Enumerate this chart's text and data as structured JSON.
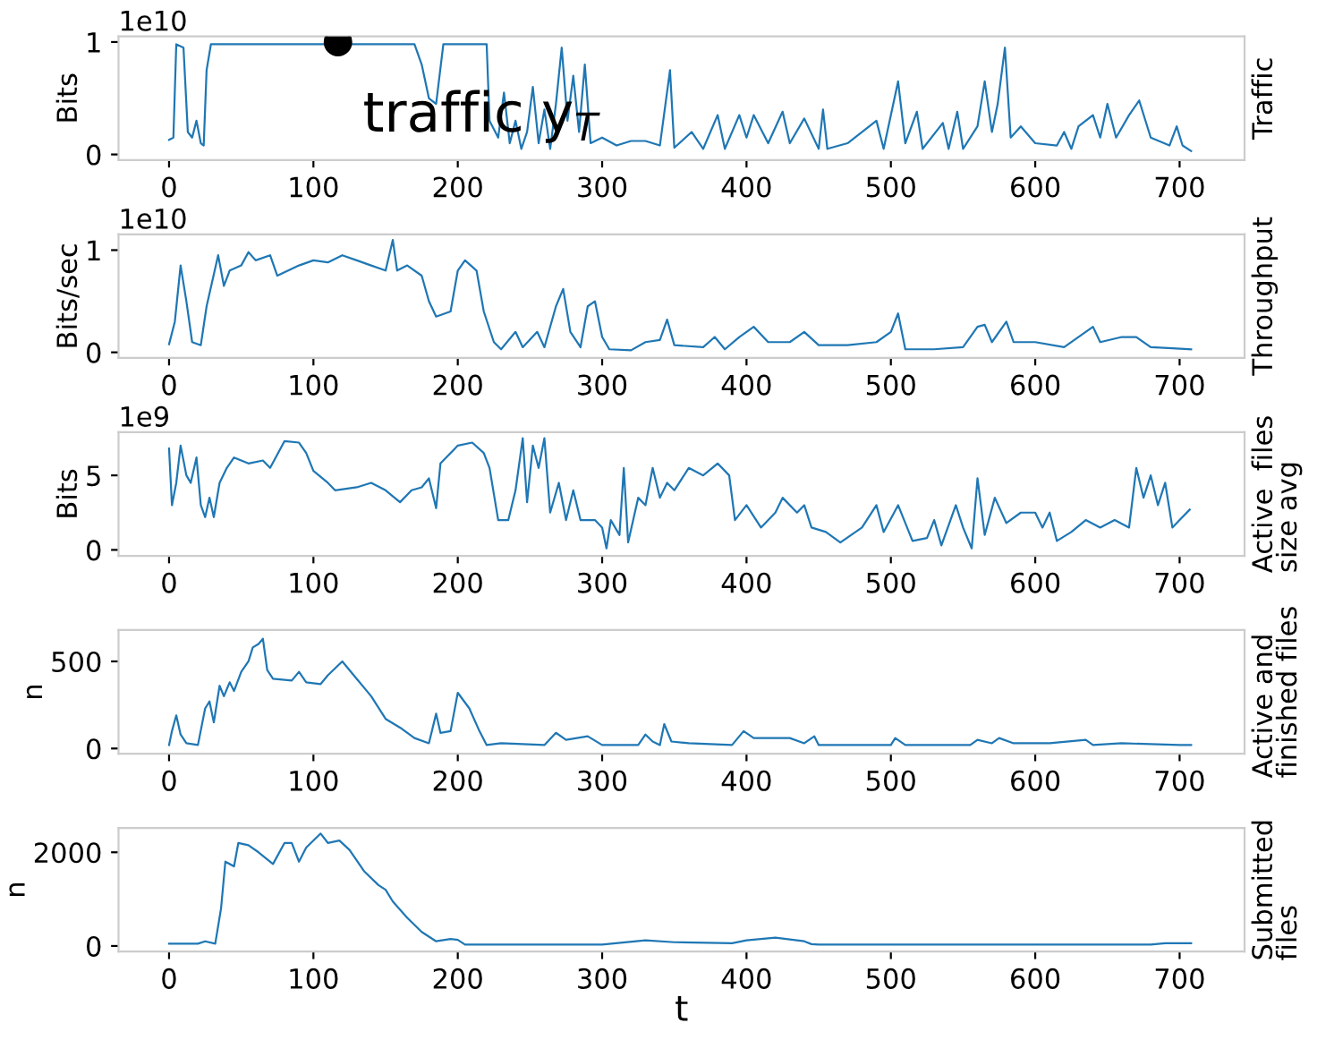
{
  "chart_data": [
    {
      "type": "line",
      "ylabel": "Bits",
      "y2label": "Traffic",
      "annotations": [
        "1e10",
        {
          "text": "traffic y$_{T}$",
          "x": 117,
          "y": 1.0
        }
      ],
      "xlim": [
        -35,
        745
      ],
      "xticks": [
        0,
        100,
        200,
        300,
        400,
        500,
        600,
        700
      ],
      "ylim": [
        -0.05,
        1.05
      ],
      "yticks": [
        0,
        1
      ],
      "series": [
        {
          "color": "#1f77b4",
          "x": [
            0,
            3,
            5,
            10,
            13,
            16,
            19,
            22,
            24,
            26,
            29,
            100,
            170,
            175,
            180,
            185,
            190,
            220,
            222,
            228,
            232,
            236,
            240,
            244,
            248,
            252,
            256,
            260,
            264,
            268,
            272,
            276,
            280,
            284,
            288,
            292,
            300,
            310,
            320,
            330,
            340,
            347,
            350,
            362,
            370,
            380,
            385,
            395,
            400,
            405,
            415,
            425,
            430,
            440,
            450,
            453,
            456,
            470,
            490,
            495,
            505,
            510,
            518,
            522,
            536,
            540,
            546,
            550,
            560,
            565,
            570,
            574,
            579,
            583,
            590,
            600,
            615,
            620,
            625,
            630,
            640,
            645,
            650,
            656,
            665,
            672,
            680,
            693,
            698,
            702,
            708
          ],
          "values": [
            0.13,
            0.15,
            0.98,
            0.95,
            0.2,
            0.15,
            0.3,
            0.1,
            0.08,
            0.75,
            0.98,
            0.98,
            0.98,
            0.8,
            0.5,
            0.45,
            0.98,
            0.98,
            0.3,
            0.15,
            0.55,
            0.1,
            0.3,
            0.05,
            0.2,
            0.6,
            0.1,
            0.4,
            0.05,
            0.45,
            0.95,
            0.3,
            0.7,
            0.2,
            0.8,
            0.1,
            0.15,
            0.08,
            0.12,
            0.12,
            0.08,
            0.75,
            0.06,
            0.2,
            0.05,
            0.35,
            0.05,
            0.35,
            0.15,
            0.35,
            0.1,
            0.38,
            0.1,
            0.32,
            0.05,
            0.4,
            0.05,
            0.1,
            0.3,
            0.05,
            0.65,
            0.1,
            0.38,
            0.05,
            0.28,
            0.05,
            0.38,
            0.05,
            0.25,
            0.65,
            0.2,
            0.45,
            0.95,
            0.15,
            0.25,
            0.1,
            0.08,
            0.2,
            0.05,
            0.25,
            0.35,
            0.15,
            0.45,
            0.15,
            0.35,
            0.48,
            0.15,
            0.08,
            0.25,
            0.08,
            0.03
          ]
        },
        {
          "type": "scatter",
          "color": "#000000",
          "marker": "circle",
          "x": [
            117
          ],
          "values": [
            1.0
          ]
        }
      ]
    },
    {
      "type": "line",
      "ylabel": "Bits/sec",
      "y2label": "Throughput",
      "annotations": [
        "1e10"
      ],
      "xlim": [
        -35,
        745
      ],
      "xticks": [
        0,
        100,
        200,
        300,
        400,
        500,
        600,
        700
      ],
      "ylim": [
        -0.055,
        1.155
      ],
      "yticks": [
        0,
        1
      ],
      "series": [
        {
          "color": "#1f77b4",
          "x": [
            0,
            4,
            8,
            12,
            16,
            22,
            26,
            30,
            34,
            38,
            42,
            50,
            55,
            60,
            70,
            75,
            90,
            100,
            110,
            120,
            130,
            140,
            150,
            155,
            158,
            165,
            175,
            180,
            185,
            195,
            200,
            205,
            213,
            218,
            225,
            230,
            240,
            245,
            255,
            260,
            268,
            273,
            278,
            285,
            290,
            295,
            300,
            305,
            320,
            330,
            340,
            345,
            350,
            370,
            378,
            385,
            395,
            405,
            415,
            430,
            440,
            450,
            470,
            490,
            500,
            505,
            510,
            530,
            550,
            560,
            565,
            570,
            580,
            585,
            600,
            620,
            640,
            645,
            660,
            670,
            680,
            695,
            708
          ],
          "values": [
            0.08,
            0.3,
            0.85,
            0.5,
            0.1,
            0.07,
            0.45,
            0.7,
            0.95,
            0.65,
            0.8,
            0.85,
            0.98,
            0.9,
            0.95,
            0.75,
            0.85,
            0.9,
            0.88,
            0.95,
            0.9,
            0.85,
            0.8,
            1.1,
            0.8,
            0.85,
            0.75,
            0.5,
            0.35,
            0.4,
            0.8,
            0.9,
            0.8,
            0.4,
            0.1,
            0.03,
            0.2,
            0.05,
            0.2,
            0.05,
            0.45,
            0.62,
            0.2,
            0.05,
            0.45,
            0.5,
            0.15,
            0.03,
            0.02,
            0.1,
            0.12,
            0.32,
            0.07,
            0.05,
            0.15,
            0.03,
            0.15,
            0.25,
            0.1,
            0.1,
            0.2,
            0.07,
            0.07,
            0.1,
            0.2,
            0.38,
            0.03,
            0.03,
            0.05,
            0.25,
            0.27,
            0.1,
            0.3,
            0.1,
            0.1,
            0.05,
            0.25,
            0.1,
            0.15,
            0.15,
            0.05,
            0.04,
            0.03
          ]
        }
      ]
    },
    {
      "type": "line",
      "ylabel": "Bits",
      "y2label": "Active  files\nsize avg",
      "annotations": [
        "1e9"
      ],
      "xlim": [
        -35,
        745
      ],
      "xticks": [
        0,
        100,
        200,
        300,
        400,
        500,
        600,
        700
      ],
      "ylim": [
        -0.4,
        7.9
      ],
      "yticks": [
        0,
        5
      ],
      "series": [
        {
          "color": "#1f77b4",
          "x": [
            0,
            2,
            5,
            8,
            12,
            15,
            19,
            22,
            25,
            28,
            31,
            35,
            40,
            45,
            55,
            65,
            70,
            80,
            90,
            95,
            100,
            110,
            115,
            130,
            140,
            150,
            160,
            168,
            175,
            180,
            185,
            188,
            200,
            210,
            218,
            222,
            228,
            235,
            240,
            245,
            248,
            252,
            256,
            260,
            264,
            270,
            275,
            280,
            285,
            295,
            300,
            303,
            306,
            312,
            315,
            318,
            325,
            330,
            335,
            340,
            345,
            350,
            360,
            370,
            380,
            388,
            392,
            400,
            410,
            420,
            425,
            435,
            440,
            445,
            455,
            465,
            480,
            490,
            495,
            505,
            515,
            525,
            530,
            535,
            545,
            550,
            556,
            560,
            565,
            572,
            580,
            590,
            600,
            605,
            610,
            615,
            625,
            635,
            645,
            655,
            665,
            670,
            675,
            680,
            685,
            690,
            695,
            700,
            707
          ],
          "values": [
            6.8,
            3,
            4.5,
            7,
            5,
            4.5,
            6.2,
            3,
            2.2,
            3.5,
            2.2,
            4.5,
            5.5,
            6.2,
            5.8,
            6,
            5.5,
            7.3,
            7.2,
            6.5,
            5.3,
            4.5,
            4,
            4.2,
            4.5,
            4,
            3.2,
            4,
            4.2,
            4.8,
            2.8,
            5.8,
            7,
            7.2,
            6.5,
            5.5,
            2,
            2,
            4,
            7.5,
            3.2,
            7,
            5.5,
            7.5,
            2.5,
            4.5,
            2,
            4,
            2,
            2,
            1.5,
            0.1,
            2,
            1,
            5.5,
            0.5,
            3.5,
            3,
            5.5,
            3.5,
            4.5,
            4,
            5.5,
            5,
            5.8,
            5,
            2,
            3,
            1.5,
            2.5,
            3.5,
            2.5,
            3,
            1.5,
            1.2,
            0.5,
            1.5,
            3,
            1.2,
            3,
            0.6,
            0.8,
            2,
            0.3,
            3,
            1.5,
            0.1,
            4.8,
            1,
            3.5,
            1.8,
            2.5,
            2.5,
            1.5,
            2.5,
            0.6,
            1.2,
            2,
            1.5,
            2,
            1.5,
            5.5,
            3.5,
            5,
            3,
            4.5,
            1.5,
            2,
            2.7
          ]
        }
      ]
    },
    {
      "type": "line",
      "ylabel": "n",
      "y2label": "Active and\nfinished files",
      "xlim": [
        -35,
        745
      ],
      "xticks": [
        0,
        100,
        200,
        300,
        400,
        500,
        600,
        700
      ],
      "ylim": [
        -30,
        680
      ],
      "yticks": [
        0,
        500
      ],
      "series": [
        {
          "color": "#1f77b4",
          "x": [
            0,
            2,
            5,
            8,
            12,
            20,
            25,
            28,
            31,
            35,
            38,
            42,
            45,
            50,
            55,
            58,
            62,
            65,
            68,
            72,
            85,
            90,
            95,
            105,
            110,
            115,
            120,
            130,
            140,
            150,
            160,
            170,
            180,
            185,
            188,
            195,
            200,
            208,
            215,
            220,
            230,
            260,
            268,
            275,
            290,
            300,
            325,
            330,
            335,
            340,
            343,
            348,
            360,
            390,
            398,
            405,
            420,
            430,
            440,
            447,
            450,
            500,
            503,
            510,
            555,
            560,
            570,
            575,
            585,
            610,
            635,
            640,
            660,
            700,
            708
          ],
          "values": [
            20,
            100,
            190,
            80,
            30,
            20,
            230,
            270,
            150,
            360,
            300,
            380,
            330,
            440,
            500,
            580,
            600,
            630,
            450,
            400,
            390,
            440,
            380,
            370,
            420,
            460,
            500,
            400,
            300,
            170,
            120,
            60,
            30,
            200,
            90,
            100,
            320,
            230,
            100,
            20,
            30,
            20,
            90,
            50,
            70,
            20,
            20,
            80,
            40,
            20,
            140,
            40,
            30,
            20,
            100,
            60,
            60,
            60,
            30,
            70,
            20,
            20,
            60,
            20,
            20,
            50,
            30,
            60,
            30,
            30,
            50,
            20,
            30,
            20,
            20
          ]
        }
      ]
    },
    {
      "type": "line",
      "ylabel": "n",
      "y2label": "Submitted\nfiles",
      "xlabel": "t",
      "xlim": [
        -35,
        745
      ],
      "xticks": [
        0,
        100,
        200,
        300,
        400,
        500,
        600,
        700
      ],
      "ylim": [
        -120,
        2520
      ],
      "yticks": [
        0,
        2000
      ],
      "series": [
        {
          "color": "#1f77b4",
          "x": [
            0,
            20,
            25,
            32,
            36,
            39,
            45,
            48,
            55,
            62,
            72,
            80,
            85,
            90,
            95,
            105,
            110,
            118,
            125,
            135,
            145,
            150,
            155,
            165,
            175,
            185,
            195,
            200,
            205,
            300,
            330,
            350,
            390,
            400,
            420,
            440,
            445,
            450,
            680,
            690,
            708
          ],
          "values": [
            50,
            50,
            100,
            50,
            800,
            1800,
            1700,
            2200,
            2150,
            2000,
            1750,
            2200,
            2200,
            1800,
            2100,
            2400,
            2200,
            2250,
            2050,
            1600,
            1300,
            1200,
            950,
            600,
            300,
            100,
            150,
            130,
            30,
            30,
            120,
            80,
            60,
            120,
            180,
            100,
            40,
            30,
            30,
            60,
            60
          ]
        }
      ]
    }
  ]
}
